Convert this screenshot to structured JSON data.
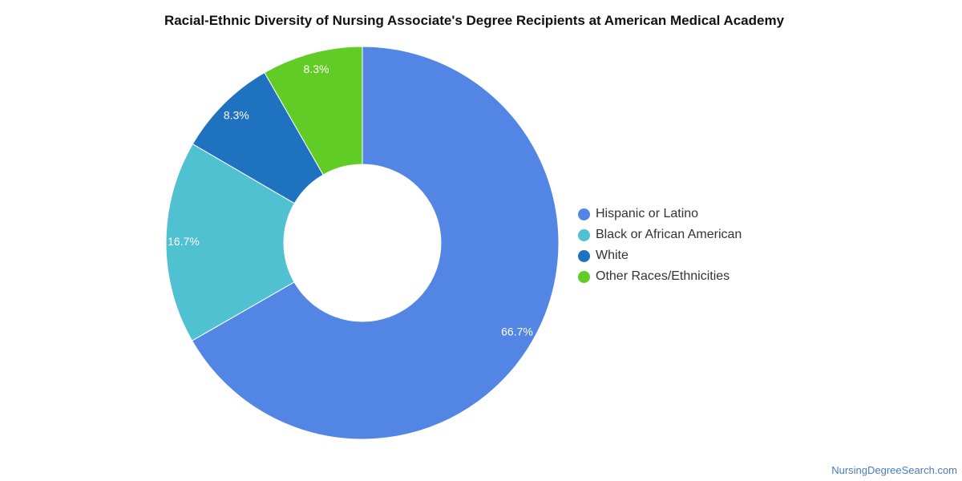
{
  "chart_data": {
    "type": "pie",
    "title": "Racial-Ethnic Diversity of Nursing Associate's Degree Recipients at American Medical Academy",
    "donut": true,
    "legend_position": "right",
    "slices": [
      {
        "label": "Hispanic or Latino",
        "value": 66.7,
        "display": "66.7%",
        "color": "#5386e4"
      },
      {
        "label": "Black or African American",
        "value": 16.7,
        "display": "16.7%",
        "color": "#4fc1d0"
      },
      {
        "label": "White",
        "value": 8.3,
        "display": "8.3%",
        "color": "#1f72c0"
      },
      {
        "label": "Other Races/Ethnicities",
        "value": 8.3,
        "display": "8.3%",
        "color": "#62cc27"
      }
    ]
  },
  "footer": {
    "source": "NursingDegreeSearch.com"
  }
}
